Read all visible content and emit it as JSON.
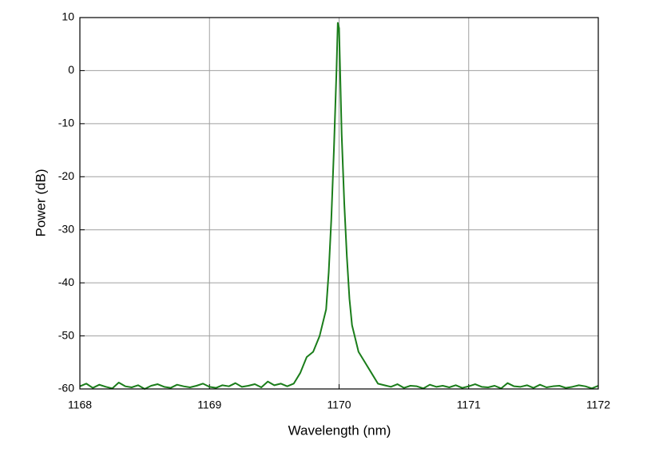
{
  "chart_data": {
    "type": "line",
    "x_label": "Wavelength (nm)",
    "y_label": "Power (dB)",
    "xlim": [
      1168,
      1172
    ],
    "xticks": [
      1168,
      1169,
      1170,
      1171,
      1172
    ],
    "ylim": [
      -60,
      10
    ],
    "yticks": [
      -60,
      -50,
      -40,
      -30,
      -20,
      -10,
      0,
      10
    ],
    "grid": true,
    "series": [
      {
        "color": "#1a7d1a",
        "x": [
          1168.0,
          1168.05,
          1168.1,
          1168.15,
          1168.2,
          1168.25,
          1168.3,
          1168.35,
          1168.4,
          1168.45,
          1168.5,
          1168.55,
          1168.6,
          1168.65,
          1168.7,
          1168.75,
          1168.8,
          1168.85,
          1168.9,
          1168.95,
          1169.0,
          1169.05,
          1169.1,
          1169.15,
          1169.2,
          1169.25,
          1169.3,
          1169.35,
          1169.4,
          1169.45,
          1169.5,
          1169.55,
          1169.6,
          1169.65,
          1169.7,
          1169.75,
          1169.8,
          1169.85,
          1169.9,
          1169.92,
          1169.94,
          1169.96,
          1169.98,
          1169.99,
          1170.0,
          1170.01,
          1170.02,
          1170.04,
          1170.06,
          1170.08,
          1170.1,
          1170.15,
          1170.2,
          1170.25,
          1170.3,
          1170.35,
          1170.4,
          1170.45,
          1170.5,
          1170.55,
          1170.6,
          1170.65,
          1170.7,
          1170.75,
          1170.8,
          1170.85,
          1170.9,
          1170.95,
          1171.0,
          1171.05,
          1171.1,
          1171.15,
          1171.2,
          1171.25,
          1171.3,
          1171.35,
          1171.4,
          1171.45,
          1171.5,
          1171.55,
          1171.6,
          1171.65,
          1171.7,
          1171.75,
          1171.8,
          1171.85,
          1171.9,
          1171.95,
          1172.0
        ],
        "values": [
          -59.5,
          -59,
          -59.8,
          -59.2,
          -59.6,
          -59.9,
          -58.8,
          -59.5,
          -59.7,
          -59.3,
          -60,
          -59.4,
          -59.1,
          -59.6,
          -59.8,
          -59.2,
          -59.5,
          -59.7,
          -59.4,
          -59,
          -59.6,
          -59.8,
          -59.3,
          -59.5,
          -58.9,
          -59.6,
          -59.4,
          -59.1,
          -59.7,
          -58.6,
          -59.3,
          -59,
          -59.5,
          -59,
          -57,
          -54,
          -53,
          -50,
          -45,
          -38,
          -28,
          -15,
          0,
          9,
          8,
          -2,
          -12,
          -25,
          -35,
          -43,
          -48,
          -53,
          -55,
          -57,
          -59,
          -59.3,
          -59.6,
          -59.1,
          -59.8,
          -59.4,
          -59.5,
          -59.9,
          -59.2,
          -59.6,
          -59.4,
          -59.7,
          -59.3,
          -59.8,
          -59.5,
          -59.1,
          -59.6,
          -59.7,
          -59.4,
          -59.9,
          -58.9,
          -59.5,
          -59.6,
          -59.3,
          -59.8,
          -59.2,
          -59.7,
          -59.5,
          -59.4,
          -59.8,
          -59.6,
          -59.3,
          -59.5,
          -59.9,
          -59.4
        ]
      }
    ]
  }
}
